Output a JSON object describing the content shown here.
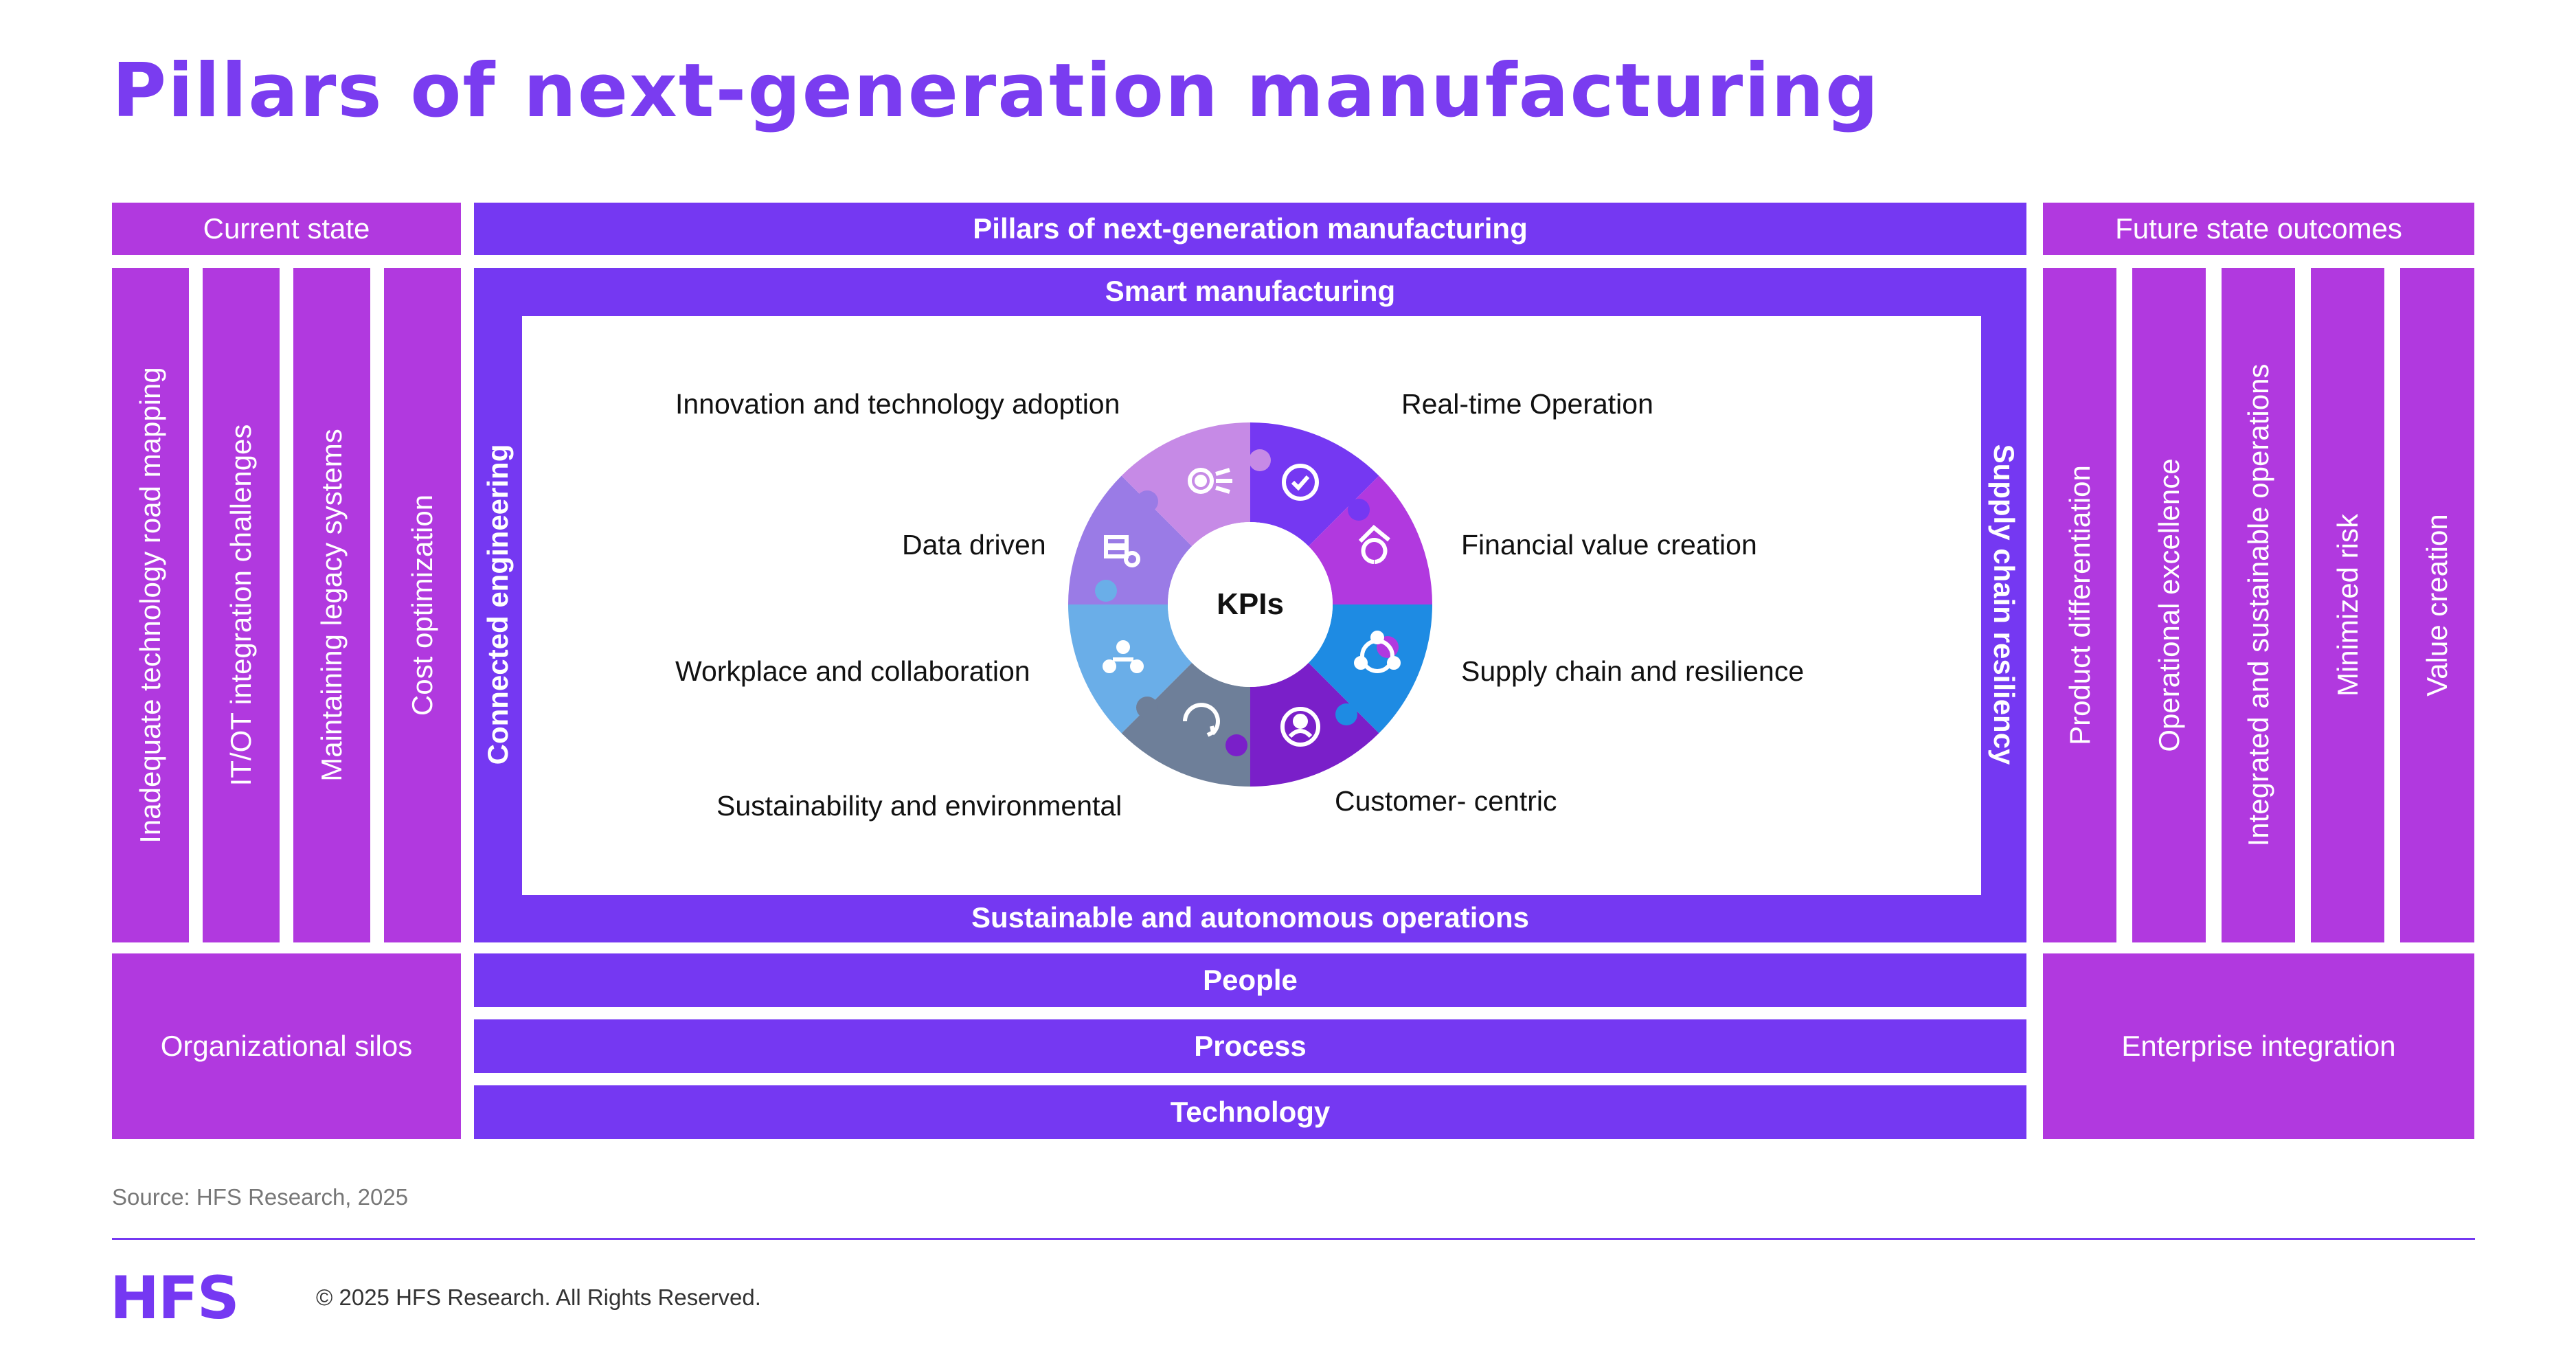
{
  "title": "Pillars of next-generation manufacturing",
  "headers": {
    "current": "Current state",
    "pillars": "Pillars of next-generation manufacturing",
    "future": "Future state outcomes"
  },
  "current_state_items": [
    "Inadequate technology road mapping",
    "IT/OT integration challenges",
    "Maintaining legacy systems",
    "Cost optimization"
  ],
  "future_state_items": [
    "Product differentiation",
    "Operational excellence",
    "Integrated and sustainable operations",
    "Minimized risk",
    "Value creation"
  ],
  "frame": {
    "top": "Smart manufacturing",
    "bottom": "Sustainable and autonomous operations",
    "left": "Connected engineering",
    "right": "Supply chain resiliency"
  },
  "wheel": {
    "center": "KPIs",
    "labels": {
      "innovation": "Innovation and technology adoption",
      "realtime": "Real-time Operation",
      "data": "Data driven",
      "financial": "Financial value creation",
      "workplace": "Workplace and collaboration",
      "supply": "Supply chain and resilience",
      "sustainability": "Sustainability and environmental",
      "customer": "Customer- centric"
    },
    "segment_colors": [
      "#7538f2",
      "#b139df",
      "#1e8be3",
      "#7a1fc9",
      "#6e7f99",
      "#6aaee8",
      "#9a7be6",
      "#c68ae6"
    ],
    "icons": [
      "gauge-icon",
      "robot-arm-icon",
      "network-icon",
      "user-icon",
      "recycle-icon",
      "team-icon",
      "server-gear-icon",
      "gear-chip-icon"
    ]
  },
  "bottom_left": "Organizational silos",
  "bottom_right": "Enterprise integration",
  "foundation": [
    "People",
    "Process",
    "Technology"
  ],
  "footer": {
    "source": "Source: HFS Research, 2025",
    "logo": "HFS",
    "copyright": "© 2025 HFS Research. All Rights Reserved."
  }
}
